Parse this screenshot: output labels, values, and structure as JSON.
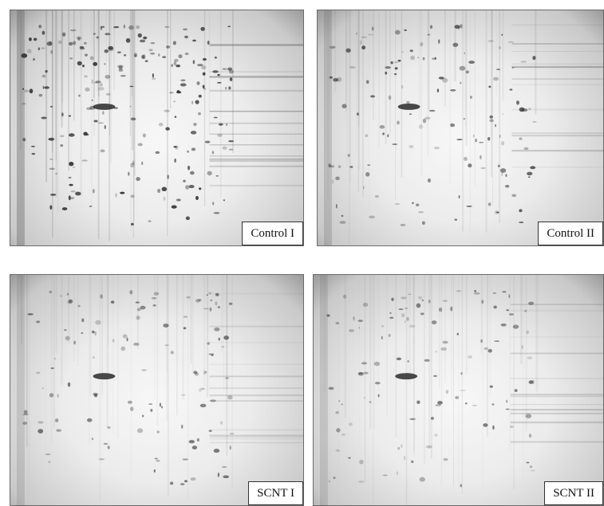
{
  "panels": [
    {
      "label": "Control I",
      "intensity": 1.0
    },
    {
      "label": "Control II",
      "intensity": 0.65
    },
    {
      "label": "SCNT I",
      "intensity": 0.5
    },
    {
      "label": "SCNT II",
      "intensity": 0.5
    }
  ],
  "colors": {
    "spot": "#2a2a2a",
    "streak": "#5a5a5a",
    "background": "#eeeeee"
  }
}
